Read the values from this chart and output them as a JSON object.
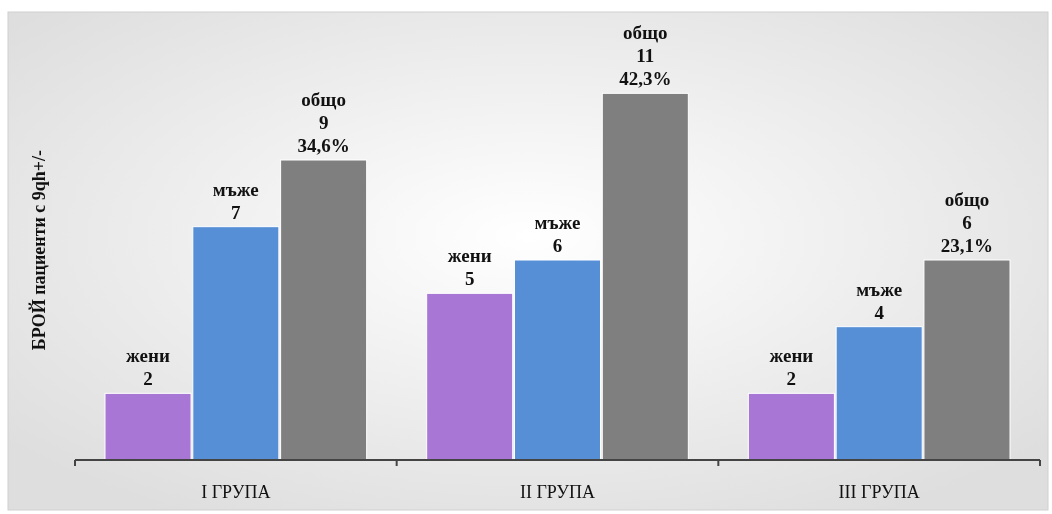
{
  "chart_data": {
    "type": "bar",
    "ylabel": "БРОЙ пациенти с 9qh+/-",
    "categories": [
      "I ГРУПА",
      "II ГРУПА",
      "III ГРУПА"
    ],
    "series": [
      {
        "name": "жени",
        "color": "#a877d6",
        "values": [
          2,
          5,
          2
        ]
      },
      {
        "name": "мъже",
        "color": "#578fd6",
        "values": [
          7,
          6,
          4
        ]
      },
      {
        "name": "общо",
        "color": "#7f7f7f",
        "values": [
          9,
          11,
          6
        ],
        "value_labels": [
          "9\n34,6%",
          "11\n42,3%",
          "6\n23,1%"
        ]
      }
    ],
    "data_labels": true,
    "legend": false,
    "grid": false
  }
}
